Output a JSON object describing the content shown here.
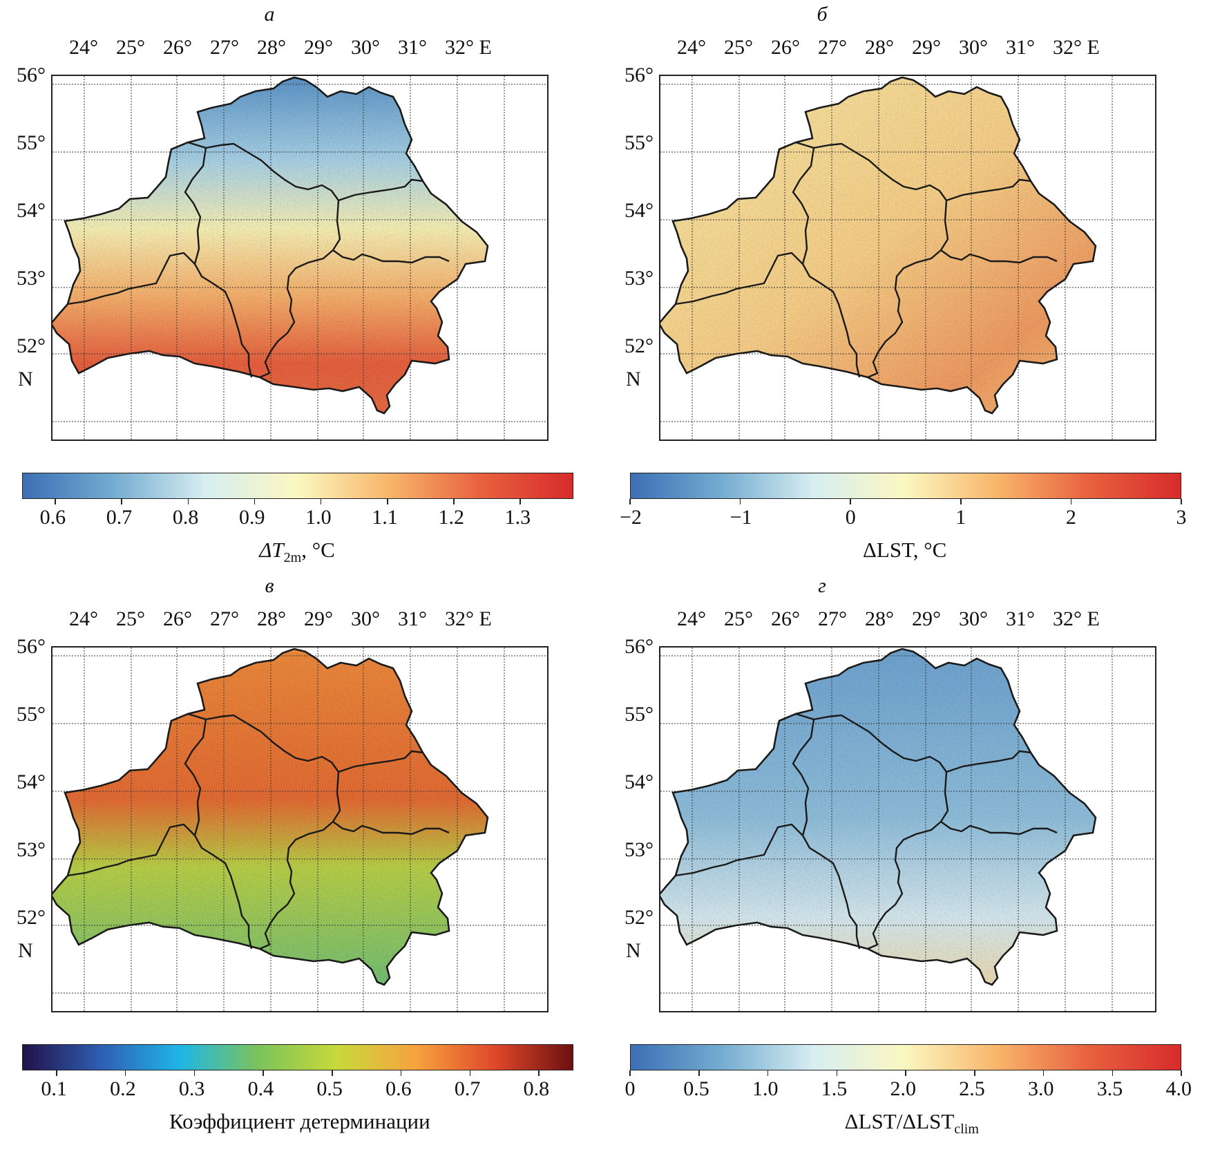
{
  "longitude_labels": [
    "24°",
    "25°",
    "26°",
    "27°",
    "28°",
    "29°",
    "30°",
    "31°",
    "32° E"
  ],
  "latitude_labels": [
    "56°",
    "55°",
    "54°",
    "53°",
    "52°"
  ],
  "north_label": "N",
  "panels": [
    {
      "id": "a",
      "letter": "а",
      "colorbar": {
        "colors": [
          "#3d6fb5",
          "#74add1",
          "#d8eef2",
          "#fbf7c0",
          "#f8b56a",
          "#e8613f",
          "#d72b2b"
        ],
        "ticks": [
          "0.6",
          "0.7",
          "0.8",
          "0.9",
          "1.0",
          "1.1",
          "1.2",
          "1.3"
        ],
        "tick_values": [
          0.6,
          0.7,
          0.8,
          0.9,
          1.0,
          1.1,
          1.2,
          1.3
        ],
        "range": [
          0.55,
          1.38
        ],
        "label_main": "ΔT",
        "label_sub": "2m",
        "label_tail": ", °C"
      }
    },
    {
      "id": "b",
      "letter": "б",
      "colorbar": {
        "colors": [
          "#3d6fb5",
          "#74add1",
          "#d8eef2",
          "#fbf7c0",
          "#f8b56a",
          "#e8613f",
          "#d72b2b"
        ],
        "ticks": [
          "−2",
          "−1",
          "0",
          "1",
          "2",
          "3"
        ],
        "tick_values": [
          -2,
          -1,
          0,
          1,
          2,
          3
        ],
        "range": [
          -2,
          3
        ],
        "label_main": "ΔLST, °C",
        "label_sub": "",
        "label_tail": ""
      }
    },
    {
      "id": "c",
      "letter": "в",
      "colorbar": {
        "colors": [
          "#22124a",
          "#2f5fb3",
          "#1fb6e6",
          "#7cc35b",
          "#c8d93a",
          "#f7a33f",
          "#e0482a",
          "#6e1010"
        ],
        "ticks": [
          "0.1",
          "0.2",
          "0.3",
          "0.4",
          "0.5",
          "0.6",
          "0.7",
          "0.8"
        ],
        "tick_values": [
          0.1,
          0.2,
          0.3,
          0.4,
          0.5,
          0.6,
          0.7,
          0.8
        ],
        "range": [
          0.05,
          0.85
        ],
        "label_main": "Коэффициент детерминации",
        "label_sub": "",
        "label_tail": ""
      }
    },
    {
      "id": "d",
      "letter": "г",
      "colorbar": {
        "colors": [
          "#3d6fb5",
          "#74add1",
          "#d8eef2",
          "#fbf7c0",
          "#f8b56a",
          "#e8613f",
          "#d72b2b"
        ],
        "ticks": [
          "0",
          "0.5",
          "1.0",
          "1.5",
          "2.0",
          "2.5",
          "3.0",
          "3.5",
          "4.0"
        ],
        "tick_values": [
          0,
          0.5,
          1.0,
          1.5,
          2.0,
          2.5,
          3.0,
          3.5,
          4.0
        ],
        "range": [
          0,
          4.0
        ],
        "label_main": "ΔLST/ΔLST",
        "label_sub": "clim",
        "label_tail": ""
      }
    }
  ]
}
